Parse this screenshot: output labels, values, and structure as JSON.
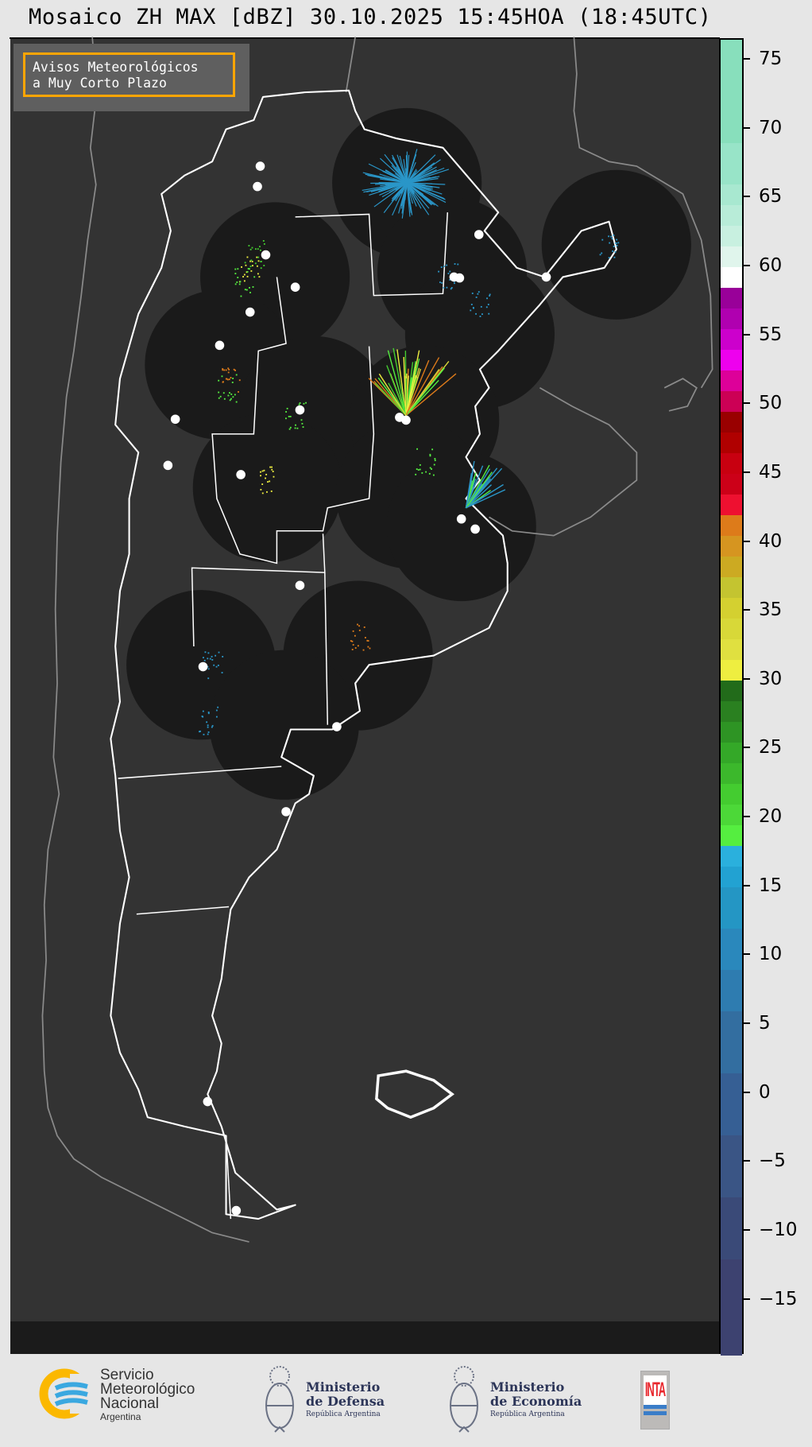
{
  "title": "Mosaico ZH MAX [dBZ] 30.10.2025 15:45HOA (18:45UTC)",
  "legend": {
    "line1": "Avisos Meteorológicos",
    "line2": "a Muy Corto Plazo",
    "border_color": "#ffa500"
  },
  "map": {
    "background": "#333333",
    "radar_coverage_color": "#1a1a1a",
    "border_color": "#ffffff",
    "neighbor_border_color": "#8a8a8a",
    "radar_site_icon": "white-dot"
  },
  "colorbar": {
    "unit": "dBZ",
    "range": [
      -19,
      76.5
    ],
    "ticks": [
      "75",
      "70",
      "65",
      "60",
      "55",
      "50",
      "45",
      "40",
      "35",
      "30",
      "25",
      "20",
      "15",
      "10",
      "5",
      "0",
      "−5",
      "−10",
      "−15"
    ],
    "tick_values": [
      75,
      70,
      65,
      60,
      55,
      50,
      45,
      40,
      35,
      30,
      25,
      20,
      15,
      10,
      5,
      0,
      -5,
      -10,
      -15
    ],
    "bins": [
      {
        "from": -19,
        "to": -12,
        "color": "#3d4270"
      },
      {
        "from": -12,
        "to": -7.5,
        "color": "#3a4a78"
      },
      {
        "from": -7.5,
        "to": -3,
        "color": "#3a5585"
      },
      {
        "from": -3,
        "to": 1.5,
        "color": "#365f94"
      },
      {
        "from": 1.5,
        "to": 6,
        "color": "#336ea0"
      },
      {
        "from": 6,
        "to": 9,
        "color": "#2e7cb0"
      },
      {
        "from": 9,
        "to": 12,
        "color": "#2a88bc"
      },
      {
        "from": 12,
        "to": 15,
        "color": "#2496c4"
      },
      {
        "from": 15,
        "to": 16.5,
        "color": "#22a2d2"
      },
      {
        "from": 16.5,
        "to": 18,
        "color": "#2ab0dd"
      },
      {
        "from": 18,
        "to": 19.5,
        "color": "#55ee40"
      },
      {
        "from": 19.5,
        "to": 21,
        "color": "#4cd838"
      },
      {
        "from": 21,
        "to": 22.5,
        "color": "#44cc30"
      },
      {
        "from": 22.5,
        "to": 24,
        "color": "#3cb82c"
      },
      {
        "from": 24,
        "to": 25.5,
        "color": "#34a828"
      },
      {
        "from": 25.5,
        "to": 27,
        "color": "#2e9424"
      },
      {
        "from": 27,
        "to": 28.5,
        "color": "#2a8020"
      },
      {
        "from": 28.5,
        "to": 30,
        "color": "#226b1a"
      },
      {
        "from": 30,
        "to": 31.5,
        "color": "#eeee40"
      },
      {
        "from": 31.5,
        "to": 33,
        "color": "#e0e040"
      },
      {
        "from": 33,
        "to": 34.5,
        "color": "#d8d838"
      },
      {
        "from": 34.5,
        "to": 36,
        "color": "#d4d030"
      },
      {
        "from": 36,
        "to": 37.5,
        "color": "#c4c430"
      },
      {
        "from": 37.5,
        "to": 39,
        "color": "#ccaa22"
      },
      {
        "from": 39,
        "to": 40.5,
        "color": "#d69520"
      },
      {
        "from": 40.5,
        "to": 42,
        "color": "#dd7b1a"
      },
      {
        "from": 42,
        "to": 43.5,
        "color": "#ee1030"
      },
      {
        "from": 43.5,
        "to": 45,
        "color": "#cc0018"
      },
      {
        "from": 45,
        "to": 46.5,
        "color": "#c80010"
      },
      {
        "from": 46.5,
        "to": 48,
        "color": "#b00000"
      },
      {
        "from": 48,
        "to": 49.5,
        "color": "#990000"
      },
      {
        "from": 49.5,
        "to": 51,
        "color": "#cc0055"
      },
      {
        "from": 51,
        "to": 52.5,
        "color": "#dd0099"
      },
      {
        "from": 52.5,
        "to": 54,
        "color": "#ee00ee"
      },
      {
        "from": 54,
        "to": 55.5,
        "color": "#cc00cc"
      },
      {
        "from": 55.5,
        "to": 57,
        "color": "#b000b0"
      },
      {
        "from": 57,
        "to": 58.5,
        "color": "#990099"
      },
      {
        "from": 58.5,
        "to": 60,
        "color": "#ffffff"
      },
      {
        "from": 60,
        "to": 61.5,
        "color": "#e0f5ec"
      },
      {
        "from": 61.5,
        "to": 63,
        "color": "#c8f0e0"
      },
      {
        "from": 63,
        "to": 64.5,
        "color": "#b8ecd8"
      },
      {
        "from": 64.5,
        "to": 66,
        "color": "#a8e8d0"
      },
      {
        "from": 66,
        "to": 69,
        "color": "#98e4c8"
      },
      {
        "from": 69,
        "to": 76.5,
        "color": "#88dfbc"
      }
    ]
  },
  "footer": {
    "smn": {
      "line1": "Servicio",
      "line2": "Meteorológico",
      "line3": "Nacional",
      "line4": "Argentina"
    },
    "defensa": {
      "line1": "Ministerio",
      "line2": "de Defensa",
      "line3": "República Argentina"
    },
    "economia": {
      "line1": "Ministerio",
      "line2": "de Economía",
      "line3": "República Argentina"
    },
    "inta": {
      "label": "INTA",
      "color": "#e8262c"
    }
  }
}
